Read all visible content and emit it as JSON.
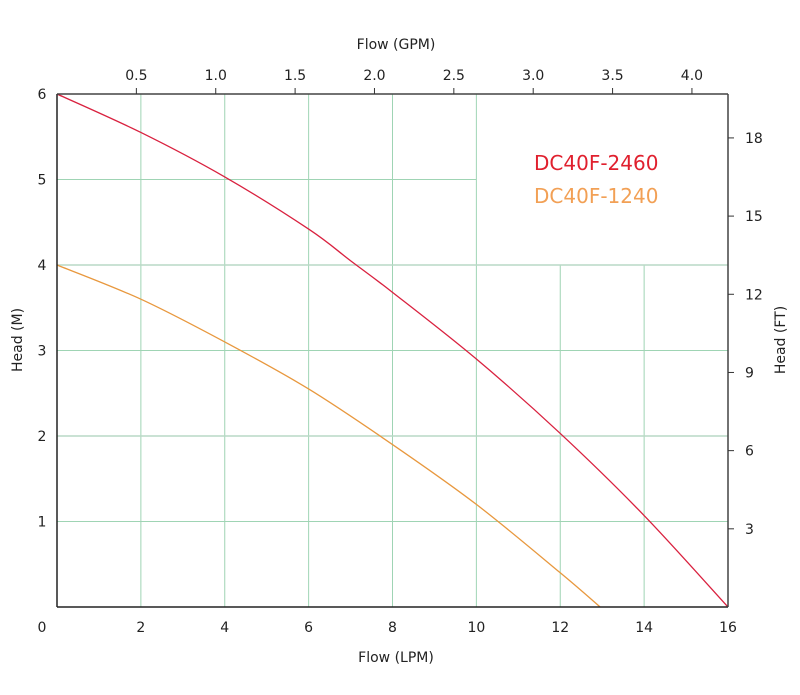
{
  "chart_data": {
    "type": "line",
    "xlabel": "Flow (LPM)",
    "x2label": "Flow (GPM)",
    "ylabel": "Head (M)",
    "y2label": "Head (FT)",
    "xlim": [
      0,
      16
    ],
    "ylim": [
      0,
      6
    ],
    "x_ticks": [
      "0",
      "2",
      "4",
      "6",
      "8",
      "10",
      "12",
      "14",
      "16"
    ],
    "y_ticks": [
      "1",
      "2",
      "3",
      "4",
      "5",
      "6"
    ],
    "x2_ticks": [
      "0.5",
      "1.0",
      "1.5",
      "2.0",
      "2.5",
      "3.0",
      "3.5",
      "4.0"
    ],
    "y2_ticks": [
      "3",
      "6",
      "9",
      "12",
      "15",
      "18"
    ],
    "grid": true,
    "legend_position": "top-right",
    "series": [
      {
        "name": "DC40F-2460",
        "color": "#d9213f",
        "x": [
          0,
          2,
          4,
          6,
          7,
          8,
          10,
          12,
          14,
          16
        ],
        "y": [
          6,
          5.55,
          5.03,
          4.42,
          4.05,
          3.68,
          2.9,
          2.03,
          1.07,
          0
        ]
      },
      {
        "name": "DC40F-1240",
        "color": "#e8983e",
        "x": [
          0,
          2,
          4,
          6,
          8,
          10,
          12,
          12.95
        ],
        "y": [
          4,
          3.6,
          3.1,
          2.55,
          1.9,
          1.2,
          0.4,
          0
        ]
      }
    ],
    "legend_colors": [
      "#e0202e",
      "#f2a055"
    ],
    "grid_color": "#9fd4b4"
  }
}
